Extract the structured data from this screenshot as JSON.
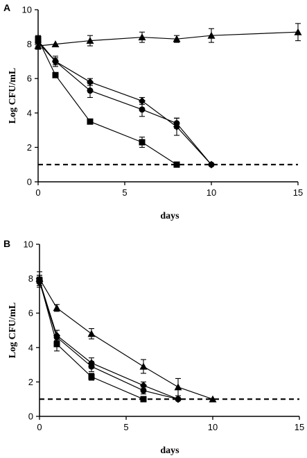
{
  "chart_data": [
    {
      "type": "line",
      "panel_label": "A",
      "xlabel": "days",
      "ylabel": "Log CFU/mL",
      "xlim": [
        0,
        15
      ],
      "ylim": [
        0,
        10
      ],
      "xticks": [
        0,
        5,
        10,
        15
      ],
      "yticks": [
        0,
        2,
        4,
        6,
        8,
        10
      ],
      "grid": false,
      "threshold": 1,
      "series": [
        {
          "marker": "triangle",
          "points": [
            [
              0,
              7.9,
              0.2
            ],
            [
              1,
              8.0,
              0
            ],
            [
              3,
              8.2,
              0.3
            ],
            [
              6,
              8.4,
              0.3
            ],
            [
              8,
              8.3,
              0.2
            ],
            [
              10,
              8.5,
              0.4
            ],
            [
              15,
              8.7,
              0.5
            ]
          ]
        },
        {
          "marker": "diamond",
          "points": [
            [
              0,
              8.1,
              0.2
            ],
            [
              1,
              7.0,
              0.2
            ],
            [
              3,
              5.8,
              0.2
            ],
            [
              6,
              4.7,
              0.2
            ],
            [
              8,
              3.2,
              0.5
            ],
            [
              10,
              1.0,
              0
            ]
          ]
        },
        {
          "marker": "circle",
          "points": [
            [
              0,
              8.2,
              0.2
            ],
            [
              1,
              7.0,
              0.3
            ],
            [
              3,
              5.3,
              0.4
            ],
            [
              6,
              4.2,
              0.4
            ],
            [
              8,
              3.4,
              0.3
            ],
            [
              10,
              1.0,
              0
            ]
          ]
        },
        {
          "marker": "square",
          "points": [
            [
              0,
              8.3,
              0.2
            ],
            [
              1,
              6.2,
              0
            ],
            [
              3,
              3.5,
              0
            ],
            [
              6,
              2.3,
              0.3
            ],
            [
              8,
              1.0,
              0
            ]
          ]
        }
      ]
    },
    {
      "type": "line",
      "panel_label": "B",
      "xlabel": "days",
      "ylabel": "Log CFU/mL",
      "xlim": [
        0,
        15
      ],
      "ylim": [
        0,
        10
      ],
      "xticks": [
        0,
        5,
        10,
        15
      ],
      "yticks": [
        0,
        2,
        4,
        6,
        8,
        10
      ],
      "grid": false,
      "threshold": 1,
      "series": [
        {
          "marker": "triangle",
          "points": [
            [
              0,
              8.0,
              0.4
            ],
            [
              1,
              6.3,
              0.2
            ],
            [
              3,
              4.8,
              0.3
            ],
            [
              6,
              2.9,
              0.4
            ],
            [
              8,
              1.7,
              0.5
            ],
            [
              10,
              1.0,
              0
            ]
          ]
        },
        {
          "marker": "diamond",
          "points": [
            [
              0,
              7.9,
              0.3
            ],
            [
              1,
              4.7,
              0.3
            ],
            [
              3,
              3.1,
              0.3
            ],
            [
              6,
              1.8,
              0.2
            ],
            [
              8,
              1.0,
              0
            ]
          ]
        },
        {
          "marker": "circle",
          "points": [
            [
              0,
              7.8,
              0.3
            ],
            [
              1,
              4.6,
              0.4
            ],
            [
              3,
              2.9,
              0.3
            ],
            [
              6,
              1.5,
              0.2
            ],
            [
              8,
              1.0,
              0
            ]
          ]
        },
        {
          "marker": "square",
          "points": [
            [
              0,
              7.9,
              0.3
            ],
            [
              1,
              4.2,
              0.4
            ],
            [
              3,
              2.3,
              0.2
            ],
            [
              6,
              1.0,
              0
            ]
          ]
        }
      ]
    }
  ]
}
